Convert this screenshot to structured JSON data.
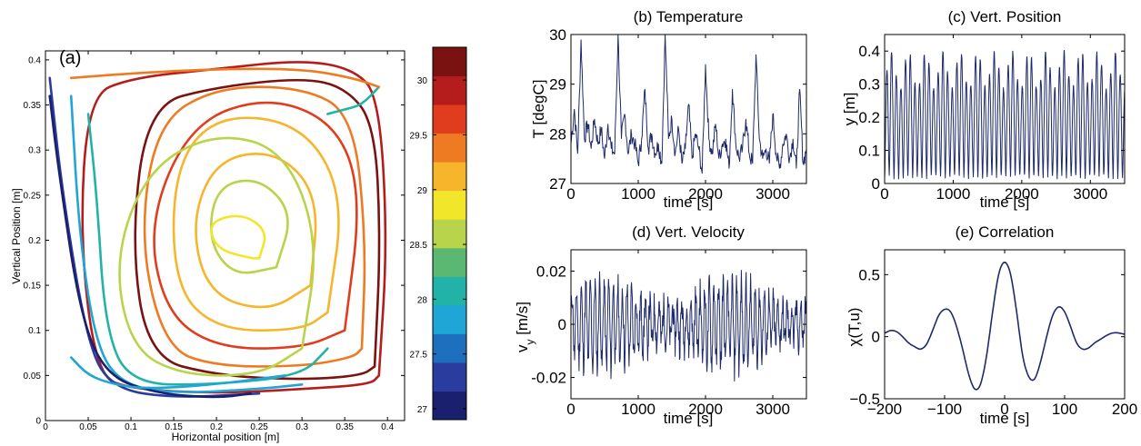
{
  "chart_data": [
    {
      "type": "scatter",
      "panel": "(a)",
      "title": "",
      "xlabel": "Horizontal position [m]",
      "ylabel": "Vertical Position [m]",
      "xlim": [
        0,
        0.42
      ],
      "ylim": [
        0,
        0.41
      ],
      "xticks": [
        "0",
        "0.05",
        "0.1",
        "0.15",
        "0.2",
        "0.25",
        "0.3",
        "0.35",
        "0.4"
      ],
      "yticks": [
        "0",
        "0.05",
        "0.1",
        "0.15",
        "0.2",
        "0.25",
        "0.3",
        "0.35",
        "0.4"
      ],
      "colorbar": {
        "range": [
          26.9,
          30.3
        ],
        "ticks": [
          "27",
          "27.5",
          "28",
          "28.5",
          "29",
          "29.5",
          "30"
        ],
        "colors": [
          "#1a1f6e",
          "#2a3d9e",
          "#1f6fbf",
          "#1fa6d6",
          "#22b3a8",
          "#5ab872",
          "#b7d44a",
          "#f2e62a",
          "#f7b52c",
          "#ee7a22",
          "#e03d1e",
          "#b51d1d",
          "#7a1212"
        ]
      },
      "trajectory_description": "counter-clockwise convection loops colored by temperature",
      "series": [
        {
          "color_value": 29.9,
          "x": [
            0.39,
            0.4,
            0.39,
            0.36,
            0.3,
            0.2,
            0.1,
            0.05,
            0.04,
            0.06,
            0.1,
            0.2,
            0.3,
            0.38,
            0.39
          ],
          "y": [
            0.05,
            0.2,
            0.36,
            0.39,
            0.4,
            0.39,
            0.38,
            0.36,
            0.2,
            0.05,
            0.035,
            0.03,
            0.035,
            0.04,
            0.05
          ]
        },
        {
          "color_value": 30.1,
          "x": [
            0.385,
            0.392,
            0.385,
            0.35,
            0.3,
            0.2,
            0.12,
            0.1,
            0.12,
            0.2,
            0.3,
            0.37,
            0.385
          ],
          "y": [
            0.06,
            0.2,
            0.33,
            0.37,
            0.38,
            0.37,
            0.35,
            0.2,
            0.07,
            0.05,
            0.045,
            0.05,
            0.06
          ]
        },
        {
          "color_value": 29.5,
          "x": [
            0.37,
            0.375,
            0.36,
            0.3,
            0.2,
            0.13,
            0.11,
            0.14,
            0.2,
            0.3,
            0.36,
            0.37
          ],
          "y": [
            0.08,
            0.2,
            0.34,
            0.37,
            0.37,
            0.33,
            0.2,
            0.08,
            0.06,
            0.06,
            0.07,
            0.08
          ]
        },
        {
          "color_value": 29.7,
          "x": [
            0.35,
            0.37,
            0.34,
            0.26,
            0.17,
            0.12,
            0.14,
            0.2,
            0.3,
            0.35
          ],
          "y": [
            0.1,
            0.25,
            0.33,
            0.36,
            0.33,
            0.22,
            0.12,
            0.08,
            0.08,
            0.1
          ]
        },
        {
          "color_value": 29.2,
          "x": [
            0.33,
            0.35,
            0.3,
            0.2,
            0.15,
            0.15,
            0.2,
            0.3,
            0.33
          ],
          "y": [
            0.12,
            0.25,
            0.33,
            0.34,
            0.28,
            0.15,
            0.1,
            0.1,
            0.12
          ]
        },
        {
          "color_value": 29.0,
          "x": [
            0.31,
            0.32,
            0.27,
            0.2,
            0.17,
            0.19,
            0.26,
            0.31
          ],
          "y": [
            0.15,
            0.25,
            0.3,
            0.29,
            0.22,
            0.14,
            0.12,
            0.15
          ]
        },
        {
          "color_value": 28.7,
          "x": [
            0.27,
            0.29,
            0.25,
            0.2,
            0.19,
            0.22,
            0.27
          ],
          "y": [
            0.17,
            0.23,
            0.27,
            0.26,
            0.2,
            0.16,
            0.17
          ]
        },
        {
          "color_value": 28.8,
          "x": [
            0.25,
            0.26,
            0.23,
            0.19,
            0.2,
            0.24,
            0.25
          ],
          "y": [
            0.18,
            0.21,
            0.23,
            0.22,
            0.19,
            0.18,
            0.18
          ]
        },
        {
          "color_value": 28.5,
          "x": [
            0.3,
            0.32,
            0.28,
            0.2,
            0.12,
            0.08,
            0.1,
            0.16,
            0.25,
            0.3
          ],
          "y": [
            0.08,
            0.2,
            0.3,
            0.32,
            0.28,
            0.18,
            0.08,
            0.05,
            0.05,
            0.08
          ]
        },
        {
          "color_value": 28.2,
          "x": [
            0.05,
            0.06,
            0.07,
            0.1,
            0.2,
            0.3,
            0.33
          ],
          "y": [
            0.34,
            0.25,
            0.1,
            0.04,
            0.04,
            0.05,
            0.08
          ]
        },
        {
          "color_value": 27.9,
          "x": [
            0.03,
            0.04,
            0.06,
            0.09,
            0.15,
            0.25,
            0.3
          ],
          "y": [
            0.36,
            0.2,
            0.08,
            0.04,
            0.03,
            0.035,
            0.04
          ]
        },
        {
          "color_value": 27.3,
          "x": [
            0.005,
            0.02,
            0.05,
            0.08,
            0.15,
            0.25
          ],
          "y": [
            0.38,
            0.25,
            0.08,
            0.035,
            0.025,
            0.03
          ]
        },
        {
          "color_value": 27.0,
          "x": [
            0.005,
            0.015,
            0.04,
            0.07,
            0.13,
            0.2,
            0.24
          ],
          "y": [
            0.36,
            0.28,
            0.12,
            0.05,
            0.03,
            0.025,
            0.03
          ]
        },
        {
          "color_value": 27.8,
          "x": [
            0.03,
            0.05,
            0.08,
            0.12,
            0.2,
            0.28
          ],
          "y": [
            0.07,
            0.05,
            0.04,
            0.035,
            0.04,
            0.05
          ]
        },
        {
          "color_value": 28.1,
          "x": [
            0.33,
            0.35,
            0.37,
            0.39
          ],
          "y": [
            0.34,
            0.345,
            0.35,
            0.37
          ]
        },
        {
          "color_value": 29.4,
          "x": [
            0.03,
            0.1,
            0.2,
            0.3,
            0.36,
            0.39
          ],
          "y": [
            0.38,
            0.385,
            0.39,
            0.39,
            0.38,
            0.37
          ]
        }
      ]
    },
    {
      "type": "line",
      "panel": "(b)",
      "title": "(b)  Temperature",
      "xlabel": "time [s]",
      "ylabel": "T [degC]",
      "xlim": [
        0,
        3500
      ],
      "ylim": [
        27,
        30
      ],
      "xticks": [
        "0",
        "1000",
        "2000",
        "3000"
      ],
      "yticks": [
        "27",
        "28",
        "29",
        "30"
      ],
      "color": "#1f2a6b",
      "x": [
        0,
        50,
        100,
        150,
        200,
        250,
        300,
        350,
        400,
        450,
        500,
        550,
        600,
        650,
        700,
        750,
        800,
        850,
        900,
        950,
        1000,
        1050,
        1100,
        1150,
        1200,
        1250,
        1300,
        1350,
        1400,
        1450,
        1500,
        1550,
        1600,
        1650,
        1700,
        1750,
        1800,
        1850,
        1900,
        1950,
        2000,
        2050,
        2100,
        2150,
        2200,
        2250,
        2300,
        2350,
        2400,
        2450,
        2500,
        2550,
        2600,
        2650,
        2700,
        2750,
        2800,
        2850,
        2900,
        2950,
        3000,
        3050,
        3100,
        3150,
        3200,
        3250,
        3300,
        3350,
        3400,
        3450,
        3500
      ],
      "y": [
        27.8,
        28.5,
        27.6,
        29.9,
        27.9,
        28.2,
        27.7,
        28.3,
        27.8,
        28.1,
        27.5,
        28.2,
        27.7,
        27.6,
        30.0,
        27.9,
        28.4,
        27.6,
        28.0,
        27.8,
        27.4,
        27.9,
        28.9,
        27.7,
        28.0,
        27.6,
        27.8,
        27.4,
        30.0,
        27.9,
        28.3,
        27.6,
        28.1,
        27.4,
        27.7,
        28.6,
        27.5,
        28.0,
        27.7,
        27.2,
        29.4,
        27.9,
        27.6,
        28.2,
        27.5,
        27.8,
        27.9,
        27.3,
        28.9,
        27.8,
        27.5,
        27.7,
        28.3,
        27.6,
        27.4,
        29.6,
        27.9,
        27.5,
        27.7,
        27.4,
        28.4,
        27.6,
        27.3,
        27.8,
        28.0,
        27.5,
        27.9,
        27.3,
        28.9,
        27.4,
        27.7
      ]
    },
    {
      "type": "line",
      "panel": "(c)",
      "title": "(c)  Vert. Position",
      "xlabel": "time [s]",
      "ylabel": "y [m]",
      "xlim": [
        0,
        3500
      ],
      "ylim": [
        0,
        0.45
      ],
      "xticks": [
        "0",
        "1000",
        "2000",
        "3000"
      ],
      "yticks": [
        "0",
        "0.1",
        "0.2",
        "0.3",
        "0.4"
      ],
      "color": "#1f2a6b",
      "period_s": 68,
      "amplitude_range": [
        0.02,
        0.4
      ]
    },
    {
      "type": "line",
      "panel": "(d)",
      "title": "(d)  Vert. Velocity",
      "xlabel": "time [s]",
      "ylabel": "v_y [m/s]",
      "xlim": [
        0,
        3500
      ],
      "ylim": [
        -0.028,
        0.028
      ],
      "xticks": [
        "0",
        "1000",
        "2000",
        "3000"
      ],
      "yticks": [
        "-0.02",
        "0",
        "0.02"
      ],
      "color": "#1f2a6b",
      "amplitude_range": [
        -0.024,
        0.026
      ]
    },
    {
      "type": "line",
      "panel": "(e)",
      "title": "(e)  Correlation",
      "xlabel": "time [s]",
      "ylabel": "χ(T,u)",
      "xlim": [
        -200,
        200
      ],
      "ylim": [
        -0.5,
        0.7
      ],
      "xticks": [
        "−200",
        "−100",
        "0",
        "100",
        "200"
      ],
      "yticks": [
        "−0.5",
        "0",
        "0.5"
      ],
      "color": "#1f2a6b",
      "x": [
        -200,
        -190,
        -180,
        -170,
        -160,
        -150,
        -140,
        -130,
        -120,
        -110,
        -100,
        -90,
        -80,
        -70,
        -60,
        -50,
        -40,
        -30,
        -20,
        -10,
        0,
        10,
        20,
        30,
        40,
        50,
        60,
        70,
        80,
        90,
        100,
        110,
        120,
        130,
        140,
        150,
        160,
        170,
        180,
        190,
        200
      ],
      "y": [
        0.03,
        0.05,
        0.04,
        0.0,
        -0.05,
        -0.08,
        -0.1,
        -0.06,
        0.05,
        0.17,
        0.22,
        0.2,
        0.08,
        -0.1,
        -0.3,
        -0.42,
        -0.38,
        -0.15,
        0.2,
        0.5,
        0.6,
        0.5,
        0.2,
        -0.15,
        -0.32,
        -0.34,
        -0.2,
        0.0,
        0.17,
        0.24,
        0.2,
        0.08,
        -0.05,
        -0.1,
        -0.09,
        -0.05,
        -0.02,
        0.01,
        0.03,
        0.03,
        0.02
      ]
    }
  ]
}
